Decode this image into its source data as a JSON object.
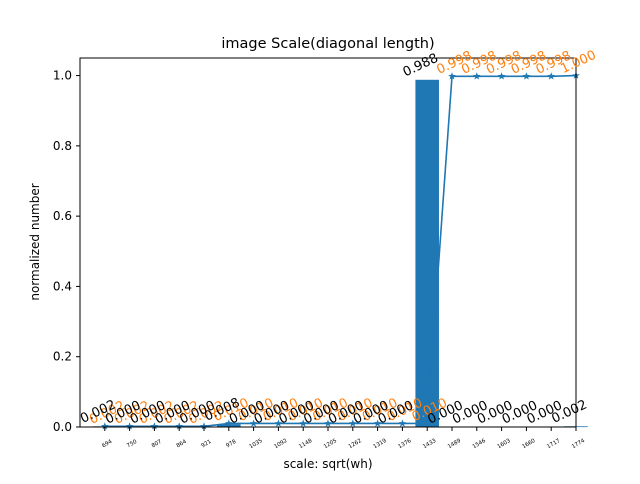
{
  "chart_data": {
    "type": "bar",
    "title": "image Scale(diagonal length)",
    "xlabel": "scale: sqrt(wh)",
    "ylabel": "normalized number",
    "ylim": [
      0,
      1.05
    ],
    "yticks": [
      "0.0",
      "0.2",
      "0.4",
      "0.6",
      "0.8",
      "1.0"
    ],
    "categories": [
      "694",
      "750",
      "807",
      "864",
      "921",
      "978",
      "1035",
      "1092",
      "1148",
      "1205",
      "1262",
      "1319",
      "1376",
      "1433",
      "1489",
      "1546",
      "1603",
      "1660",
      "1717",
      "1774"
    ],
    "series": [
      {
        "kind": "bar",
        "color": "#1f77b4",
        "values": [
          0.002,
          0.0,
          0.0,
          0.0,
          0.0,
          0.008,
          0.0,
          0.0,
          0.0,
          0.0,
          0.0,
          0.0,
          0.0,
          0.988,
          0.0,
          0.0,
          0.0,
          0.0,
          0.0,
          0.002
        ],
        "labels": [
          "0.002",
          "0.000",
          "0.000",
          "0.000",
          "0.000",
          "0.008",
          "0.000",
          "0.000",
          "0.000",
          "0.000",
          "0.000",
          "0.000",
          "0.000",
          "0.988",
          "0.000",
          "0.000",
          "0.000",
          "0.000",
          "0.000",
          "0.002"
        ],
        "label_color": "#000000"
      },
      {
        "kind": "line",
        "marker": "star",
        "color": "#1f77b4",
        "values": [
          0.002,
          0.002,
          0.002,
          0.002,
          0.002,
          0.01,
          0.01,
          0.01,
          0.01,
          0.01,
          0.01,
          0.01,
          0.01,
          0.01,
          0.998,
          0.998,
          0.998,
          0.998,
          0.998,
          1.0
        ],
        "labels": [
          "0.002",
          "0.002",
          "0.002",
          "0.002",
          "0.002",
          "0.010",
          "0.010",
          "0.010",
          "0.010",
          "0.010",
          "0.010",
          "0.010",
          "0.010",
          "0.010",
          "0.998",
          "0.998",
          "0.998",
          "0.998",
          "0.998",
          "1.000"
        ],
        "label_color": "#ff7f0e"
      }
    ]
  }
}
